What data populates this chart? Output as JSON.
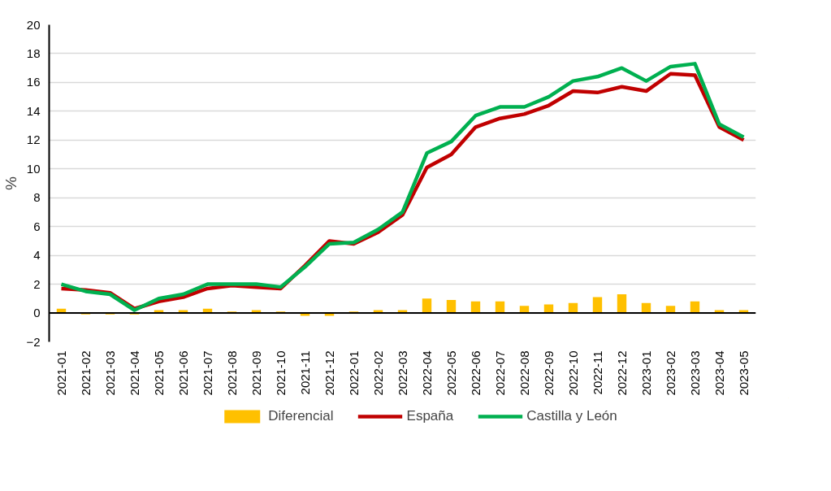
{
  "chart_data": {
    "type": "line",
    "ylabel": "%",
    "categories": [
      "2021-01",
      "2021-02",
      "2021-03",
      "2021-04",
      "2021-05",
      "2021-06",
      "2021-07",
      "2021-08",
      "2021-09",
      "2021-10",
      "2021-11",
      "2021-12",
      "2022-01",
      "2022-02",
      "2022-03",
      "2022-04",
      "2022-05",
      "2022-06",
      "2022-07",
      "2022-08",
      "2022-09",
      "2022-10",
      "2022-11",
      "2022-12",
      "2023-01",
      "2023-02",
      "2023-03",
      "2023-04",
      "2023-05"
    ],
    "series": [
      {
        "name": "Diferencial",
        "type": "bar",
        "color": "#ffc000",
        "values": [
          0.3,
          -0.1,
          -0.1,
          -0.1,
          0.2,
          0.2,
          0.3,
          0.1,
          0.2,
          0.1,
          -0.2,
          -0.2,
          0.1,
          0.2,
          0.2,
          1.0,
          0.9,
          0.8,
          0.8,
          0.5,
          0.6,
          0.7,
          1.1,
          1.3,
          0.7,
          0.5,
          0.8,
          0.2,
          0.2
        ]
      },
      {
        "name": "España",
        "color": "#c00000",
        "values": [
          1.7,
          1.6,
          1.4,
          0.3,
          0.8,
          1.1,
          1.7,
          1.9,
          1.8,
          1.7,
          3.3,
          5.0,
          4.8,
          5.6,
          6.8,
          10.1,
          11.0,
          12.9,
          13.5,
          13.8,
          14.4,
          15.4,
          15.3,
          15.7,
          15.4,
          16.6,
          16.5,
          12.9,
          12.0
        ]
      },
      {
        "name": "Castilla y León",
        "color": "#00b050",
        "values": [
          2.0,
          1.5,
          1.3,
          0.2,
          1.0,
          1.3,
          2.0,
          2.0,
          2.0,
          1.8,
          3.2,
          4.8,
          4.9,
          5.8,
          7.0,
          11.1,
          11.9,
          13.7,
          14.3,
          14.3,
          15.0,
          16.1,
          16.4,
          17.0,
          16.1,
          17.1,
          17.3,
          13.1,
          12.2
        ]
      }
    ],
    "ylim": [
      -2,
      20
    ],
    "yticks": [
      -2,
      0,
      2,
      4,
      6,
      8,
      10,
      12,
      14,
      16,
      18,
      20
    ],
    "grid": "y",
    "legend": "bottom",
    "line_style": "solid",
    "marker": "none"
  }
}
